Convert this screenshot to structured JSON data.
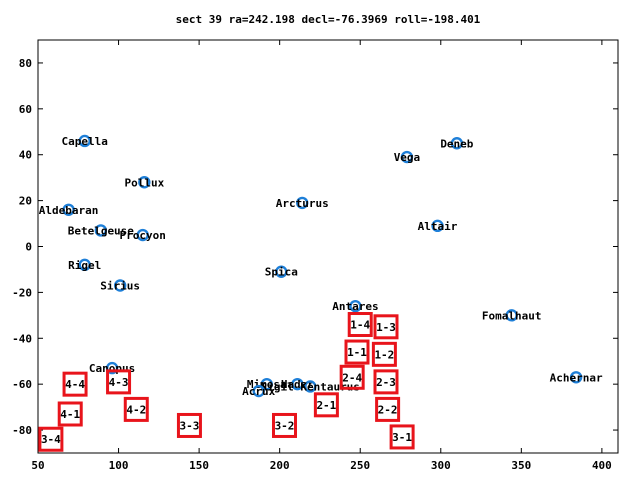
{
  "chart_data": {
    "type": "scatter",
    "title": "sect 39 ra=242.198 decl=-76.3969 roll=-198.401",
    "xlim": [
      50,
      410
    ],
    "ylim": [
      -90,
      90
    ],
    "x_ticks": [
      50,
      100,
      150,
      200,
      250,
      300,
      350,
      400
    ],
    "y_ticks": [
      -80,
      -60,
      -40,
      -20,
      0,
      20,
      40,
      60,
      80
    ],
    "grid": false,
    "colors": {
      "star": "#1e7fd8",
      "box": "#e8141b",
      "text": "#000000"
    },
    "stars": [
      {
        "name": "Capella",
        "x": 79,
        "y": 46
      },
      {
        "name": "Deneb",
        "x": 310,
        "y": 45
      },
      {
        "name": "Vega",
        "x": 279,
        "y": 39
      },
      {
        "name": "Pollux",
        "x": 116,
        "y": 28
      },
      {
        "name": "Arcturus",
        "x": 214,
        "y": 19
      },
      {
        "name": "Aldebaran",
        "x": 69,
        "y": 16
      },
      {
        "name": "Altair",
        "x": 298,
        "y": 9
      },
      {
        "name": "Betelgeuse",
        "x": 89,
        "y": 7
      },
      {
        "name": "Procyon",
        "x": 115,
        "y": 5
      },
      {
        "name": "Rigel",
        "x": 79,
        "y": -8
      },
      {
        "name": "Spica",
        "x": 201,
        "y": -11
      },
      {
        "name": "Sirius",
        "x": 101,
        "y": -17
      },
      {
        "name": "Antares",
        "x": 247,
        "y": -26
      },
      {
        "name": "Fomalhaut",
        "x": 344,
        "y": -30
      },
      {
        "name": "Canopus",
        "x": 96,
        "y": -53
      },
      {
        "name": "Achernar",
        "x": 384,
        "y": -57
      },
      {
        "name": "Mimosa",
        "x": 192,
        "y": -60
      },
      {
        "name": "Hadar",
        "x": 211,
        "y": -60
      },
      {
        "name": "Rigil Kentaurus",
        "x": 219,
        "y": -61
      },
      {
        "name": "Acrux",
        "x": 187,
        "y": -63
      }
    ],
    "boxes": [
      {
        "label": "1-4",
        "x": 250,
        "y": -34
      },
      {
        "label": "1-3",
        "x": 266,
        "y": -35
      },
      {
        "label": "1-1",
        "x": 248,
        "y": -46
      },
      {
        "label": "1-2",
        "x": 265,
        "y": -47
      },
      {
        "label": "2-4",
        "x": 245,
        "y": -57
      },
      {
        "label": "2-3",
        "x": 266,
        "y": -59
      },
      {
        "label": "4-4",
        "x": 73,
        "y": -60
      },
      {
        "label": "4-3",
        "x": 100,
        "y": -59
      },
      {
        "label": "2-1",
        "x": 229,
        "y": -69
      },
      {
        "label": "2-2",
        "x": 267,
        "y": -71
      },
      {
        "label": "4-2",
        "x": 111,
        "y": -71
      },
      {
        "label": "4-1",
        "x": 70,
        "y": -73
      },
      {
        "label": "3-3",
        "x": 144,
        "y": -78
      },
      {
        "label": "3-2",
        "x": 203,
        "y": -78
      },
      {
        "label": "3-1",
        "x": 276,
        "y": -83
      },
      {
        "label": "3-4",
        "x": 58,
        "y": -84
      }
    ]
  }
}
